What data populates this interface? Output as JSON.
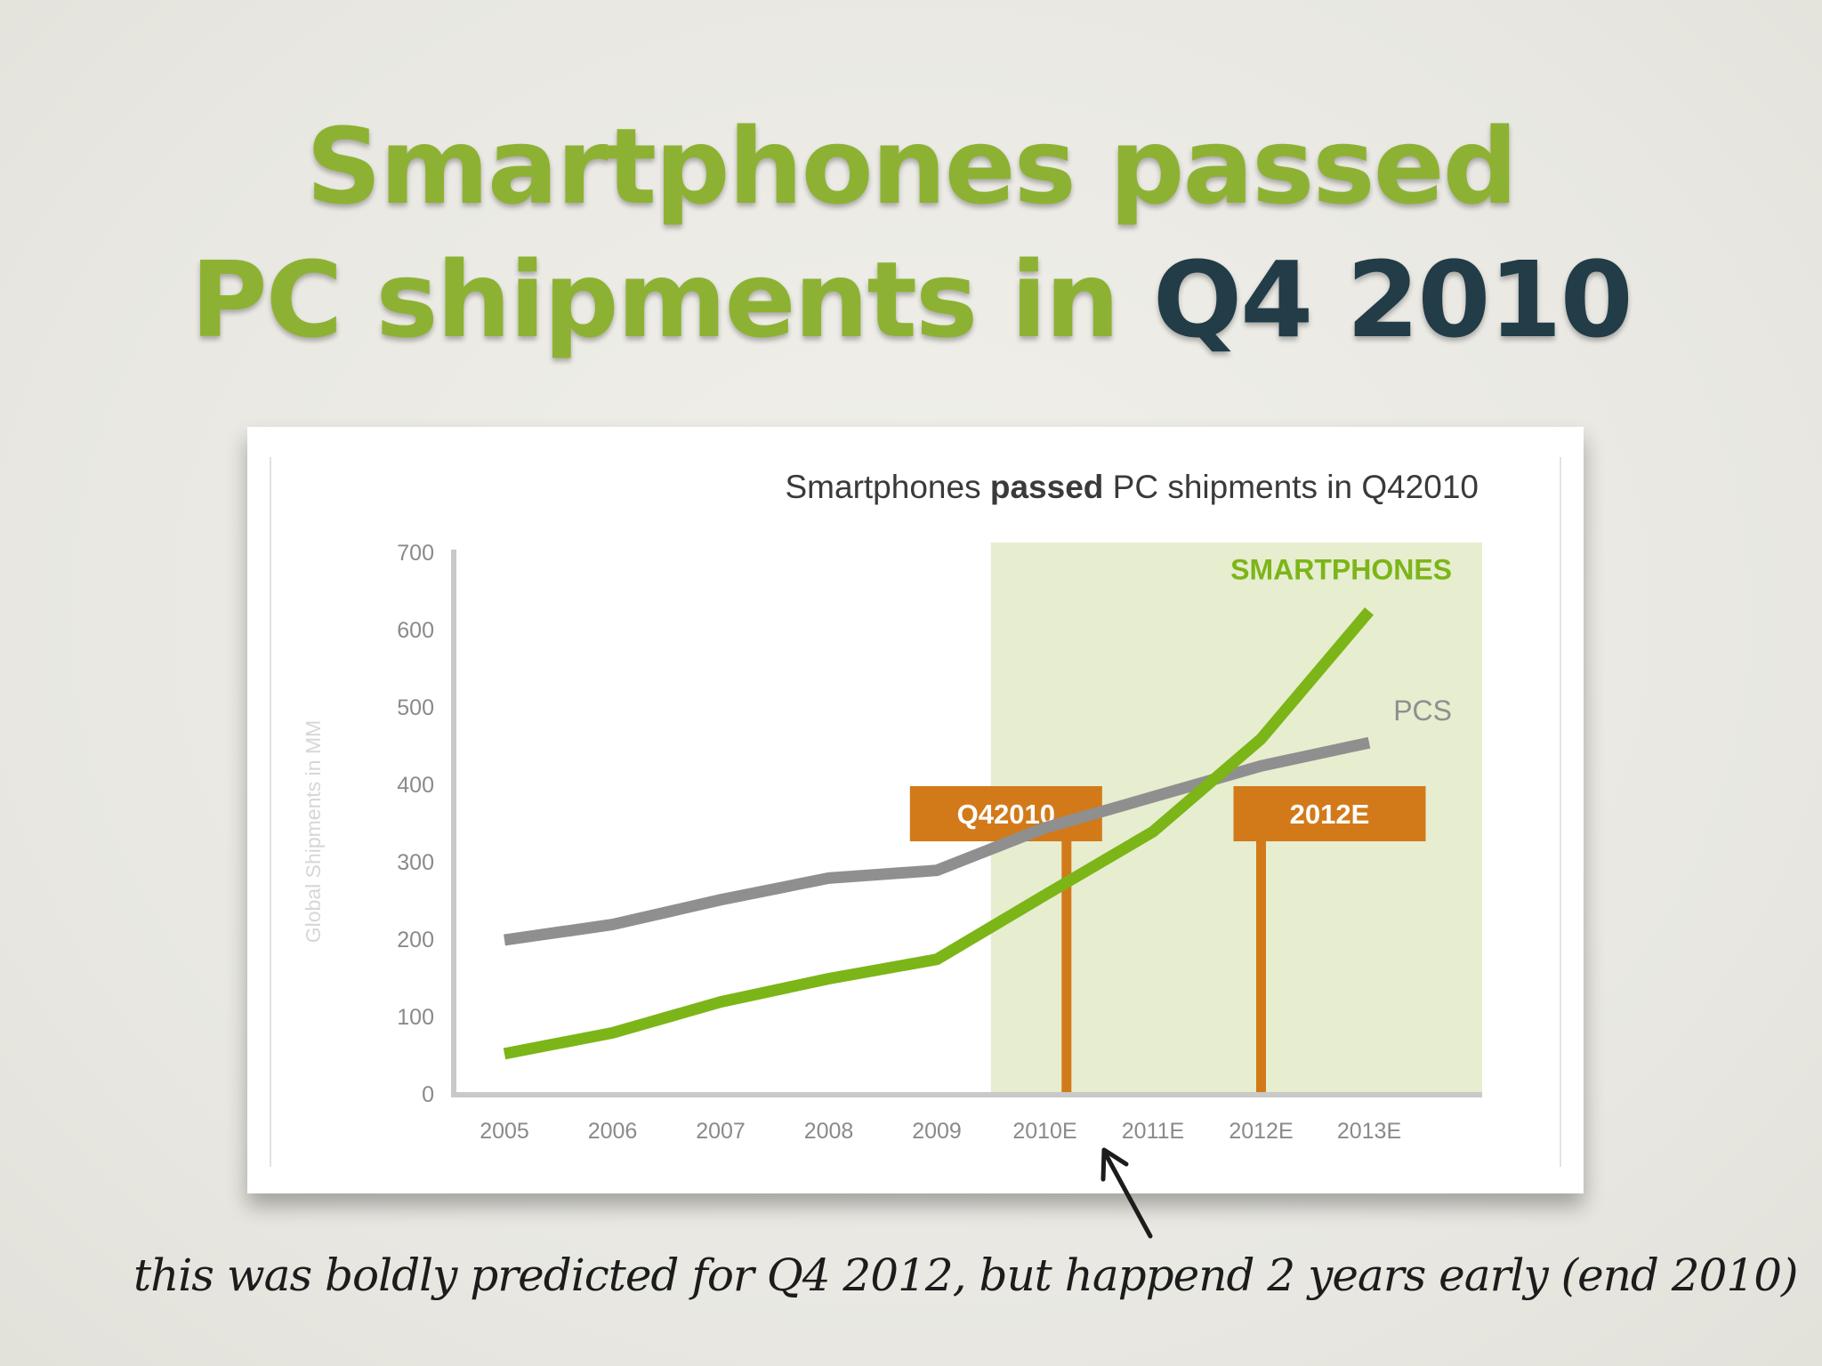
{
  "slide": {
    "title_line1": "Smartphones passed",
    "title_line2_prefix": "PC shipments in ",
    "title_line2_emphasis": "Q4 2010",
    "annotation": "this was boldly predicted for Q4 2012, but happend 2 years early (end 2010)"
  },
  "colors": {
    "title_green": "#8db233",
    "title_dark": "#223c48",
    "smartphones": "#7cb518",
    "pcs": "#8f8f8f",
    "marker": "#d27a1a",
    "forecast_shade": "#e7edcf"
  },
  "chart_data": {
    "type": "line",
    "title_prefix": "Smartphones ",
    "title_bold": "passed",
    "title_suffix": " PC shipments in Q42010",
    "ylabel": "Global Shipments in MM",
    "xlabel": "",
    "ylim": [
      0,
      700
    ],
    "yticks": [
      0,
      100,
      200,
      300,
      400,
      500,
      600,
      700
    ],
    "categories": [
      "2005",
      "2006",
      "2007",
      "2008",
      "2009",
      "2010E",
      "2011E",
      "2012E",
      "2013E"
    ],
    "series": [
      {
        "name": "PCS",
        "values": [
          200,
          220,
          252,
          280,
          290,
          345,
          385,
          425,
          455
        ]
      },
      {
        "name": "SMARTPHONES",
        "values": [
          53,
          80,
          120,
          150,
          175,
          258,
          340,
          460,
          625
        ]
      }
    ],
    "forecast_region": {
      "from": "2009",
      "to": "2013E",
      "from_offset": 0.5
    },
    "markers": [
      {
        "label": "Q42010",
        "x_index": 5.2
      },
      {
        "label": "2012E",
        "x_index": 7.0
      }
    ]
  }
}
